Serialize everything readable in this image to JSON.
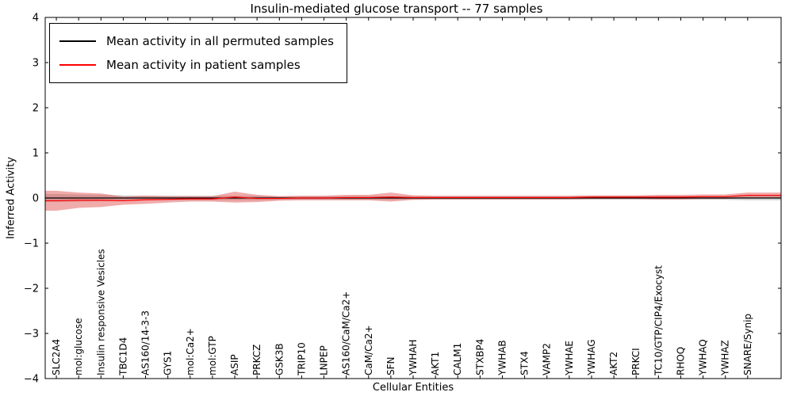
{
  "chart_data": {
    "type": "line",
    "title": "Insulin-mediated glucose transport -- 77 samples",
    "xlabel": "Cellular Entities",
    "ylabel": "Inferred Activity",
    "ylim": [
      -4,
      4
    ],
    "yticks": [
      -4,
      -3,
      -2,
      -1,
      0,
      1,
      2,
      3,
      4
    ],
    "grid": false,
    "legend_position": "upper left",
    "categories": [
      "SLC2A4",
      "mol:glucose",
      "Insulin responsive Vesicles",
      "TBC1D4",
      "AS160/14-3-3",
      "GYS1",
      "mol:Ca2+",
      "mol:GTP",
      "ASIP",
      "PRKCZ",
      "GSK3B",
      "TRIP10",
      "LNPEP",
      "AS160/CaM/Ca2+",
      "CaM/Ca2+",
      "SFN",
      "YWHAH",
      "AKT1",
      "CALM1",
      "STXBP4",
      "YWHAB",
      "STX4",
      "VAMP2",
      "YWHAE",
      "YWHAG",
      "AKT2",
      "PRKCI",
      "TC10/GTP/CIP4/Exocyst",
      "RHOQ",
      "YWHAQ",
      "YWHAZ",
      "SNARE/Synip"
    ],
    "series": [
      {
        "name": "Mean activity in all permuted samples",
        "color": "#000000",
        "band_color": "#9a9a9a",
        "band_opacity": 0.45,
        "mean": [
          0,
          0,
          0,
          0,
          0,
          0,
          0,
          0,
          0,
          0,
          0,
          0,
          0,
          0,
          0,
          0,
          0,
          0,
          0,
          0,
          0,
          0,
          0,
          0,
          0,
          0,
          0,
          0,
          0,
          0,
          0,
          0
        ],
        "band_halfwidth": [
          0.09,
          0.08,
          0.07,
          0.06,
          0.05,
          0.05,
          0.05,
          0.05,
          0.05,
          0.05,
          0.04,
          0.04,
          0.04,
          0.04,
          0.04,
          0.04,
          0.04,
          0.04,
          0.04,
          0.04,
          0.04,
          0.04,
          0.04,
          0.04,
          0.04,
          0.04,
          0.04,
          0.04,
          0.04,
          0.04,
          0.04,
          0.05
        ]
      },
      {
        "name": "Mean activity in patient samples",
        "color": "#ff0000",
        "band_color": "#dd4444",
        "band_opacity": 0.45,
        "mean": [
          -0.06,
          -0.05,
          -0.05,
          -0.06,
          -0.04,
          -0.03,
          -0.02,
          -0.02,
          0.02,
          -0.01,
          -0.01,
          0.0,
          0.0,
          0.01,
          0.01,
          0.02,
          0.01,
          0.01,
          0.01,
          0.01,
          0.01,
          0.01,
          0.01,
          0.01,
          0.02,
          0.02,
          0.02,
          0.02,
          0.02,
          0.03,
          0.03,
          0.06
        ],
        "band_halfwidth": [
          0.22,
          0.17,
          0.15,
          0.09,
          0.09,
          0.07,
          0.06,
          0.06,
          0.12,
          0.08,
          0.05,
          0.05,
          0.05,
          0.06,
          0.06,
          0.1,
          0.05,
          0.04,
          0.04,
          0.04,
          0.04,
          0.04,
          0.04,
          0.04,
          0.04,
          0.04,
          0.04,
          0.05,
          0.05,
          0.05,
          0.05,
          0.06
        ]
      }
    ]
  }
}
